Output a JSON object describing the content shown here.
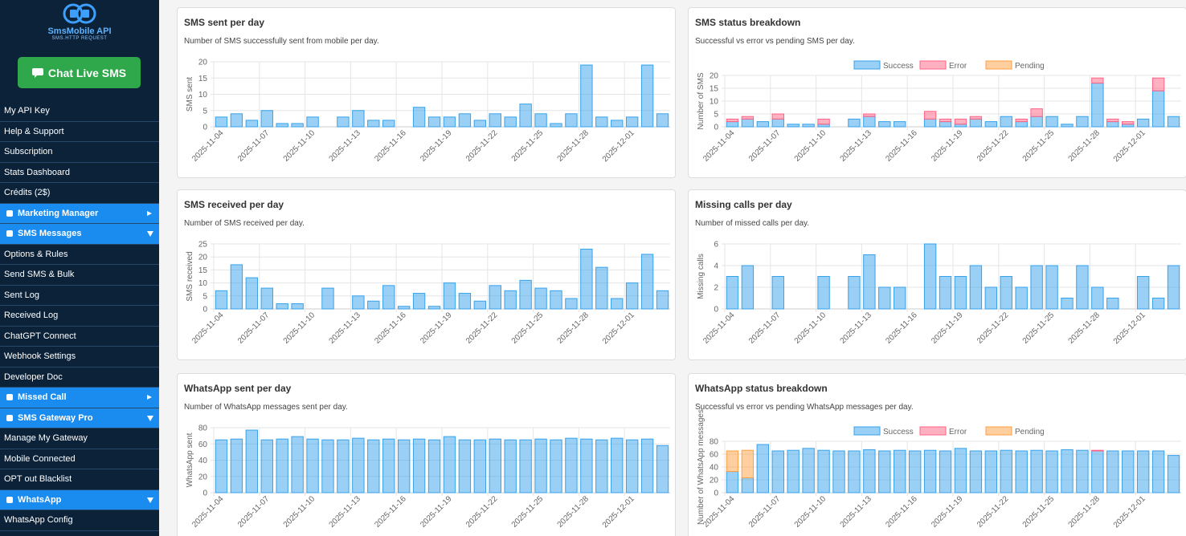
{
  "sidebar": {
    "logo_title": "SmsMobile API",
    "logo_tagline": "SMS.HTTP REQUEST",
    "button": "Chat Live SMS",
    "menu": [
      {
        "label": "My API Key"
      },
      {
        "label": "Help & Support"
      },
      {
        "label": "Subscription"
      },
      {
        "label": "Stats Dashboard"
      },
      {
        "label": "Crédits (2$)"
      },
      {
        "label": "Marketing Manager",
        "section": true,
        "expanded": false
      },
      {
        "label": "SMS Messages",
        "section": true,
        "expanded": true
      },
      {
        "label": "Options & Rules"
      },
      {
        "label": "Send SMS & Bulk"
      },
      {
        "label": "Sent Log"
      },
      {
        "label": "Received Log"
      },
      {
        "label": "ChatGPT Connect"
      },
      {
        "label": "Webhook Settings"
      },
      {
        "label": "Developer Doc"
      },
      {
        "label": "Missed Call",
        "section": true,
        "expanded": false
      },
      {
        "label": "SMS Gateway Pro",
        "section": true,
        "expanded": true
      },
      {
        "label": "Manage My Gateway"
      },
      {
        "label": "Mobile Connected"
      },
      {
        "label": "OPT out Blacklist"
      },
      {
        "label": "WhatsApp",
        "section": true,
        "expanded": true
      },
      {
        "label": "WhatsApp Config"
      }
    ]
  },
  "chart_data": [
    {
      "type": "bar",
      "title": "SMS sent per day",
      "subtitle": "Number of SMS successfully sent from mobile per day.",
      "y_label": "SMS sent",
      "categories": [
        "2025-11-04",
        null,
        null,
        "2025-11-07",
        null,
        null,
        "2025-11-10",
        null,
        null,
        "2025-11-13",
        null,
        null,
        "2025-11-16",
        null,
        null,
        "2025-11-19",
        null,
        null,
        "2025-11-22",
        null,
        null,
        "2025-11-25",
        null,
        null,
        "2025-11-28",
        null,
        null,
        "2025-12-01",
        null,
        null
      ],
      "values": [
        3,
        4,
        2,
        5,
        1,
        1,
        3,
        0,
        3,
        5,
        2,
        2,
        0,
        6,
        3,
        3,
        4,
        2,
        4,
        3,
        7,
        4,
        1,
        4,
        19,
        3,
        2,
        3,
        19,
        4
      ],
      "color": "#36a2eb",
      "ylim": [
        0,
        20
      ],
      "yticks": [
        0,
        5,
        10,
        15,
        20
      ],
      "grid": true
    },
    {
      "type": "bar",
      "title": "SMS status breakdown",
      "subtitle": "Successful vs error vs pending SMS per day.",
      "y_label": "Number of SMS",
      "stacked": true,
      "legend": "top",
      "categories": [
        "2025-11-04",
        null,
        null,
        "2025-11-07",
        null,
        null,
        "2025-11-10",
        null,
        null,
        "2025-11-13",
        null,
        null,
        "2025-11-16",
        null,
        null,
        "2025-11-19",
        null,
        null,
        "2025-11-22",
        null,
        null,
        "2025-11-25",
        null,
        null,
        "2025-11-28",
        null,
        null,
        "2025-12-01",
        null,
        null
      ],
      "series": [
        {
          "name": "Success",
          "color": "#36a2eb",
          "values": [
            2,
            3,
            2,
            3,
            1,
            1,
            1,
            0,
            3,
            4,
            2,
            2,
            0,
            3,
            2,
            1,
            3,
            2,
            4,
            2,
            4,
            4,
            1,
            4,
            17,
            2,
            1,
            3,
            14,
            4
          ]
        },
        {
          "name": "Error",
          "color": "#ff6384",
          "values": [
            1,
            1,
            0,
            2,
            0,
            0,
            2,
            0,
            0,
            1,
            0,
            0,
            0,
            3,
            1,
            2,
            1,
            0,
            0,
            1,
            3,
            0,
            0,
            0,
            2,
            1,
            1,
            0,
            5,
            0
          ]
        },
        {
          "name": "Pending",
          "color": "#ff9f40",
          "values": [
            0,
            0,
            0,
            0,
            0,
            0,
            0,
            0,
            0,
            0,
            0,
            0,
            0,
            0,
            0,
            0,
            0,
            0,
            0,
            0,
            0,
            0,
            0,
            0,
            0,
            0,
            0,
            0,
            0,
            0
          ]
        }
      ],
      "ylim": [
        0,
        20
      ],
      "yticks": [
        0,
        5,
        10,
        15,
        20
      ],
      "grid": true
    },
    {
      "type": "bar",
      "title": "SMS received per day",
      "subtitle": "Number of SMS received per day.",
      "y_label": "SMS received",
      "categories": [
        "2025-11-04",
        null,
        null,
        "2025-11-07",
        null,
        null,
        "2025-11-10",
        null,
        null,
        "2025-11-13",
        null,
        null,
        "2025-11-16",
        null,
        null,
        "2025-11-19",
        null,
        null,
        "2025-11-22",
        null,
        null,
        "2025-11-25",
        null,
        null,
        "2025-11-28",
        null,
        null,
        "2025-12-01",
        null,
        null
      ],
      "values": [
        7,
        17,
        12,
        8,
        2,
        2,
        0,
        8,
        0,
        5,
        3,
        9,
        1,
        6,
        1,
        10,
        6,
        3,
        9,
        7,
        11,
        8,
        7,
        4,
        23,
        16,
        4,
        10,
        21,
        7
      ],
      "color": "#36a2eb",
      "ylim": [
        0,
        25
      ],
      "yticks": [
        0,
        5,
        10,
        15,
        20,
        25
      ],
      "grid": true
    },
    {
      "type": "bar",
      "title": "Missing calls per day",
      "subtitle": "Number of missed calls per day.",
      "y_label": "Missing calls",
      "categories": [
        "2025-11-04",
        null,
        null,
        "2025-11-07",
        null,
        null,
        "2025-11-10",
        null,
        null,
        "2025-11-13",
        null,
        null,
        "2025-11-16",
        null,
        null,
        "2025-11-19",
        null,
        null,
        "2025-11-22",
        null,
        null,
        "2025-11-25",
        null,
        null,
        "2025-11-28",
        null,
        null,
        "2025-12-01",
        null,
        null
      ],
      "values": [
        3,
        4,
        0,
        3,
        0,
        0,
        3,
        0,
        3,
        5,
        2,
        2,
        0,
        6,
        3,
        3,
        4,
        2,
        3,
        2,
        4,
        4,
        1,
        4,
        2,
        1,
        0,
        3,
        1,
        4
      ],
      "color": "#36a2eb",
      "ylim": [
        0,
        6
      ],
      "yticks": [
        0,
        2,
        4,
        6
      ],
      "grid": true
    },
    {
      "type": "bar",
      "title": "WhatsApp sent per day",
      "subtitle": "Number of WhatsApp messages sent per day.",
      "y_label": "WhatsApp sent",
      "categories": [
        "2025-11-04",
        null,
        null,
        "2025-11-07",
        null,
        null,
        "2025-11-10",
        null,
        null,
        "2025-11-13",
        null,
        null,
        "2025-11-16",
        null,
        null,
        "2025-11-19",
        null,
        null,
        "2025-11-22",
        null,
        null,
        "2025-11-25",
        null,
        null,
        "2025-11-28",
        null,
        null,
        "2025-12-01",
        null,
        null
      ],
      "values": [
        65,
        66,
        77,
        65,
        66,
        69,
        66,
        65,
        65,
        67,
        65,
        66,
        65,
        66,
        65,
        69,
        65,
        65,
        66,
        65,
        65,
        66,
        65,
        67,
        66,
        65,
        67,
        65,
        66,
        58
      ],
      "color": "#36a2eb",
      "ylim": [
        0,
        80
      ],
      "yticks": [
        0,
        20,
        40,
        60,
        80
      ],
      "grid": true
    },
    {
      "type": "bar",
      "title": "WhatsApp status breakdown",
      "subtitle": "Successful vs error vs pending WhatsApp messages per day.",
      "y_label": "Number of WhatsApp messages",
      "stacked": true,
      "legend": "top",
      "categories": [
        "2025-11-04",
        null,
        null,
        "2025-11-07",
        null,
        null,
        "2025-11-10",
        null,
        null,
        "2025-11-13",
        null,
        null,
        "2025-11-16",
        null,
        null,
        "2025-11-19",
        null,
        null,
        "2025-11-22",
        null,
        null,
        "2025-11-25",
        null,
        null,
        "2025-11-28",
        null,
        null,
        "2025-12-01",
        null,
        null
      ],
      "series": [
        {
          "name": "Success",
          "color": "#36a2eb",
          "values": [
            33,
            23,
            75,
            65,
            66,
            69,
            66,
            65,
            65,
            67,
            65,
            66,
            65,
            66,
            65,
            69,
            65,
            65,
            66,
            65,
            66,
            65,
            67,
            66,
            65,
            65,
            65,
            65,
            65,
            58
          ]
        },
        {
          "name": "Error",
          "color": "#ff6384",
          "values": [
            0,
            0,
            0,
            0,
            0,
            0,
            0,
            0,
            0,
            0,
            0,
            0,
            0,
            0,
            0,
            0,
            0,
            0,
            0,
            0,
            0,
            0,
            0,
            0,
            1,
            0,
            0,
            0,
            0,
            0
          ]
        },
        {
          "name": "Pending",
          "color": "#ff9f40",
          "values": [
            32,
            43,
            0,
            0,
            0,
            0,
            0,
            0,
            0,
            0,
            0,
            0,
            0,
            0,
            0,
            0,
            0,
            0,
            0,
            0,
            0,
            0,
            0,
            0,
            0,
            0,
            0,
            0,
            0,
            0
          ]
        }
      ],
      "ylim": [
        0,
        80
      ],
      "yticks": [
        0,
        20,
        40,
        60,
        80
      ],
      "grid": true
    }
  ]
}
